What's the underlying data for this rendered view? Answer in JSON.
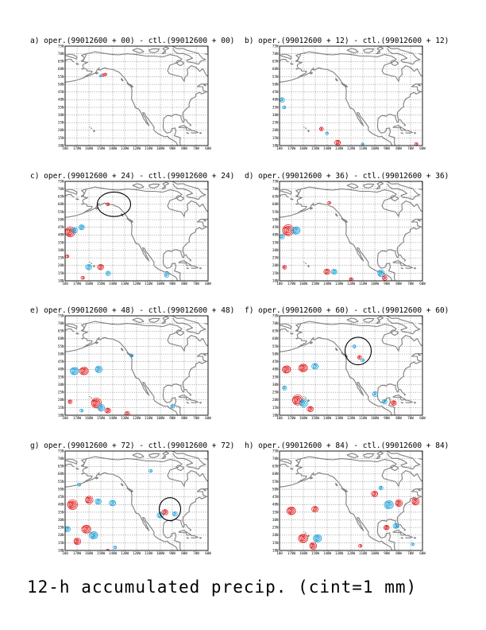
{
  "figure": {
    "caption": "12-h accumulated precip. (cint=1 mm)",
    "colors": {
      "positive": "#e0191b",
      "negative": "#1ba0d8",
      "coast": "#7f7f7f",
      "grid": "#555555"
    },
    "lat_labels": [
      "10N",
      "15N",
      "20N",
      "25N",
      "30N",
      "35N",
      "40N",
      "45N",
      "50N",
      "55N",
      "60N",
      "65N",
      "70N",
      "75N"
    ],
    "lon_labels": [
      "180",
      "170W",
      "160W",
      "150W",
      "140W",
      "130W",
      "120W",
      "110W",
      "100W",
      "90W",
      "80W",
      "70W",
      "60W"
    ]
  },
  "panels": [
    {
      "id": "a",
      "title": "a) oper.(99012600 + 00) - ctl.(99012600 + 00)",
      "ring": null,
      "cells": [
        {
          "lon": -148,
          "lat": 56,
          "sign": "pos",
          "r": 0.8
        },
        {
          "lon": -146,
          "lat": 56.5,
          "sign": "pos",
          "r": 0.8
        },
        {
          "lon": -150,
          "lat": 55.5,
          "sign": "neg",
          "r": 0.6
        }
      ]
    },
    {
      "id": "b",
      "title": "b) oper.(99012600 + 12) - ctl.(99012600 + 12)",
      "ring": null,
      "cells": [
        {
          "lon": -178,
          "lat": 40,
          "sign": "neg",
          "r": 1.2
        },
        {
          "lon": -176,
          "lat": 35,
          "sign": "neg",
          "r": 0.9
        },
        {
          "lon": -145,
          "lat": 21,
          "sign": "pos",
          "r": 1.0
        },
        {
          "lon": -140,
          "lat": 18,
          "sign": "neg",
          "r": 0.8
        },
        {
          "lon": -131,
          "lat": 12,
          "sign": "pos",
          "r": 1.5
        },
        {
          "lon": -110,
          "lat": 11,
          "sign": "neg",
          "r": 0.7
        },
        {
          "lon": -65,
          "lat": 11,
          "sign": "pos",
          "r": 0.9
        }
      ]
    },
    {
      "id": "c",
      "title": "c) oper.(99012600 + 24) - ctl.(99012600 + 24)",
      "ring": {
        "lon": -139,
        "lat": 60,
        "rlon": 14,
        "rlat": 8
      },
      "cells": [
        {
          "lon": -144,
          "lat": 60,
          "sign": "pos",
          "r": 0.9
        },
        {
          "lon": -176,
          "lat": 42,
          "sign": "pos",
          "r": 2.6
        },
        {
          "lon": -172,
          "lat": 43,
          "sign": "neg",
          "r": 1.6
        },
        {
          "lon": -166,
          "lat": 45,
          "sign": "neg",
          "r": 1.5
        },
        {
          "lon": -178,
          "lat": 26,
          "sign": "pos",
          "r": 0.9
        },
        {
          "lon": -160,
          "lat": 19,
          "sign": "neg",
          "r": 1.6
        },
        {
          "lon": -150,
          "lat": 19,
          "sign": "pos",
          "r": 1.6
        },
        {
          "lon": -144,
          "lat": 15,
          "sign": "neg",
          "r": 1.2
        },
        {
          "lon": -95,
          "lat": 14,
          "sign": "neg",
          "r": 1.2
        },
        {
          "lon": -165,
          "lat": 12,
          "sign": "pos",
          "r": 0.9
        }
      ]
    },
    {
      "id": "d",
      "title": "d) oper.(99012600 + 36) - ctl.(99012600 + 36)",
      "ring": null,
      "cells": [
        {
          "lon": -138,
          "lat": 61,
          "sign": "pos",
          "r": 0.8
        },
        {
          "lon": -173,
          "lat": 43,
          "sign": "pos",
          "r": 2.9
        },
        {
          "lon": -166,
          "lat": 43,
          "sign": "neg",
          "r": 2.2
        },
        {
          "lon": -178,
          "lat": 39,
          "sign": "neg",
          "r": 1.2
        },
        {
          "lon": -176,
          "lat": 19,
          "sign": "pos",
          "r": 1.0
        },
        {
          "lon": -140,
          "lat": 16,
          "sign": "pos",
          "r": 1.6
        },
        {
          "lon": -134,
          "lat": 16,
          "sign": "neg",
          "r": 1.5
        },
        {
          "lon": -95,
          "lat": 15,
          "sign": "neg",
          "r": 1.8
        },
        {
          "lon": -92,
          "lat": 12,
          "sign": "pos",
          "r": 1.2
        },
        {
          "lon": -120,
          "lat": 11,
          "sign": "pos",
          "r": 1.0
        }
      ]
    },
    {
      "id": "e",
      "title": "e) oper.(99012600 + 48) - ctl.(99012600 + 48)",
      "ring": null,
      "cells": [
        {
          "lon": -124,
          "lat": 49,
          "sign": "neg",
          "r": 0.9
        },
        {
          "lon": -172,
          "lat": 39,
          "sign": "neg",
          "r": 2.2
        },
        {
          "lon": -164,
          "lat": 39,
          "sign": "pos",
          "r": 2.3
        },
        {
          "lon": -152,
          "lat": 40,
          "sign": "neg",
          "r": 1.8
        },
        {
          "lon": -176,
          "lat": 19,
          "sign": "pos",
          "r": 1.0
        },
        {
          "lon": -154,
          "lat": 18,
          "sign": "pos",
          "r": 2.6
        },
        {
          "lon": -150,
          "lat": 15,
          "sign": "neg",
          "r": 1.8
        },
        {
          "lon": -144,
          "lat": 13,
          "sign": "pos",
          "r": 1.5
        },
        {
          "lon": -128,
          "lat": 11,
          "sign": "pos",
          "r": 1.3
        },
        {
          "lon": -90,
          "lat": 16,
          "sign": "neg",
          "r": 1.0
        },
        {
          "lon": -166,
          "lat": 13,
          "sign": "neg",
          "r": 0.9
        }
      ]
    },
    {
      "id": "f",
      "title": "f) oper.(99012600 + 60) - ctl.(99012600 + 60)",
      "ring": {
        "lon": -114,
        "lat": 52,
        "rlon": 11,
        "rlat": 9
      },
      "cells": [
        {
          "lon": -117,
          "lat": 55,
          "sign": "neg",
          "r": 0.9
        },
        {
          "lon": -113,
          "lat": 48,
          "sign": "pos",
          "r": 1.0
        },
        {
          "lon": -110,
          "lat": 46,
          "sign": "neg",
          "r": 0.9
        },
        {
          "lon": -174,
          "lat": 40,
          "sign": "pos",
          "r": 2.2
        },
        {
          "lon": -160,
          "lat": 41,
          "sign": "pos",
          "r": 2.3
        },
        {
          "lon": -150,
          "lat": 42,
          "sign": "neg",
          "r": 1.7
        },
        {
          "lon": -176,
          "lat": 28,
          "sign": "neg",
          "r": 1.1
        },
        {
          "lon": -165,
          "lat": 20,
          "sign": "pos",
          "r": 2.7
        },
        {
          "lon": -160,
          "lat": 18,
          "sign": "neg",
          "r": 2.1
        },
        {
          "lon": -154,
          "lat": 14,
          "sign": "pos",
          "r": 1.6
        },
        {
          "lon": -100,
          "lat": 24,
          "sign": "neg",
          "r": 1.3
        },
        {
          "lon": -92,
          "lat": 19,
          "sign": "neg",
          "r": 1.2
        },
        {
          "lon": -84,
          "lat": 18,
          "sign": "pos",
          "r": 1.4
        }
      ]
    },
    {
      "id": "g",
      "title": "g) oper.(99012600 + 72) - ctl.(99012600 + 72)",
      "ring": {
        "lon": -92,
        "lat": 37,
        "rlon": 9,
        "rlat": 7.5
      },
      "cells": [
        {
          "lon": -108,
          "lat": 62,
          "sign": "neg",
          "r": 0.9
        },
        {
          "lon": -168,
          "lat": 53,
          "sign": "neg",
          "r": 0.9
        },
        {
          "lon": -174,
          "lat": 40,
          "sign": "pos",
          "r": 2.6
        },
        {
          "lon": -160,
          "lat": 43,
          "sign": "pos",
          "r": 2.0
        },
        {
          "lon": -152,
          "lat": 42,
          "sign": "neg",
          "r": 1.6
        },
        {
          "lon": -140,
          "lat": 41,
          "sign": "neg",
          "r": 1.7
        },
        {
          "lon": -178,
          "lat": 24,
          "sign": "neg",
          "r": 1.6
        },
        {
          "lon": -162,
          "lat": 24,
          "sign": "pos",
          "r": 2.4
        },
        {
          "lon": -156,
          "lat": 20,
          "sign": "neg",
          "r": 2.2
        },
        {
          "lon": -170,
          "lat": 16,
          "sign": "pos",
          "r": 1.8
        },
        {
          "lon": -100,
          "lat": 33,
          "sign": "neg",
          "r": 1.6
        },
        {
          "lon": -96,
          "lat": 35,
          "sign": "pos",
          "r": 1.6
        },
        {
          "lon": -88,
          "lat": 34,
          "sign": "neg",
          "r": 1.2
        },
        {
          "lon": -138,
          "lat": 12,
          "sign": "neg",
          "r": 0.9
        },
        {
          "lon": -144,
          "lat": 10,
          "sign": "pos",
          "r": 0.8
        }
      ]
    },
    {
      "id": "h",
      "title": "h) oper.(99012600 + 84) - ctl.(99012600 + 84)",
      "ring": null,
      "cells": [
        {
          "lon": -95,
          "lat": 51,
          "sign": "neg",
          "r": 1.0
        },
        {
          "lon": -100,
          "lat": 47,
          "sign": "pos",
          "r": 1.7
        },
        {
          "lon": -170,
          "lat": 36,
          "sign": "pos",
          "r": 2.3
        },
        {
          "lon": -150,
          "lat": 37,
          "sign": "pos",
          "r": 1.7
        },
        {
          "lon": -88,
          "lat": 40,
          "sign": "neg",
          "r": 2.4
        },
        {
          "lon": -80,
          "lat": 41,
          "sign": "pos",
          "r": 1.8
        },
        {
          "lon": -66,
          "lat": 42,
          "sign": "pos",
          "r": 1.9
        },
        {
          "lon": -160,
          "lat": 18,
          "sign": "pos",
          "r": 2.5
        },
        {
          "lon": -148,
          "lat": 18,
          "sign": "neg",
          "r": 2.2
        },
        {
          "lon": -152,
          "lat": 13,
          "sign": "pos",
          "r": 1.8
        },
        {
          "lon": -90,
          "lat": 25,
          "sign": "pos",
          "r": 1.4
        },
        {
          "lon": -82,
          "lat": 26,
          "sign": "neg",
          "r": 1.5
        },
        {
          "lon": -112,
          "lat": 13,
          "sign": "pos",
          "r": 0.9
        },
        {
          "lon": -68,
          "lat": 14,
          "sign": "neg",
          "r": 0.8
        }
      ]
    }
  ]
}
